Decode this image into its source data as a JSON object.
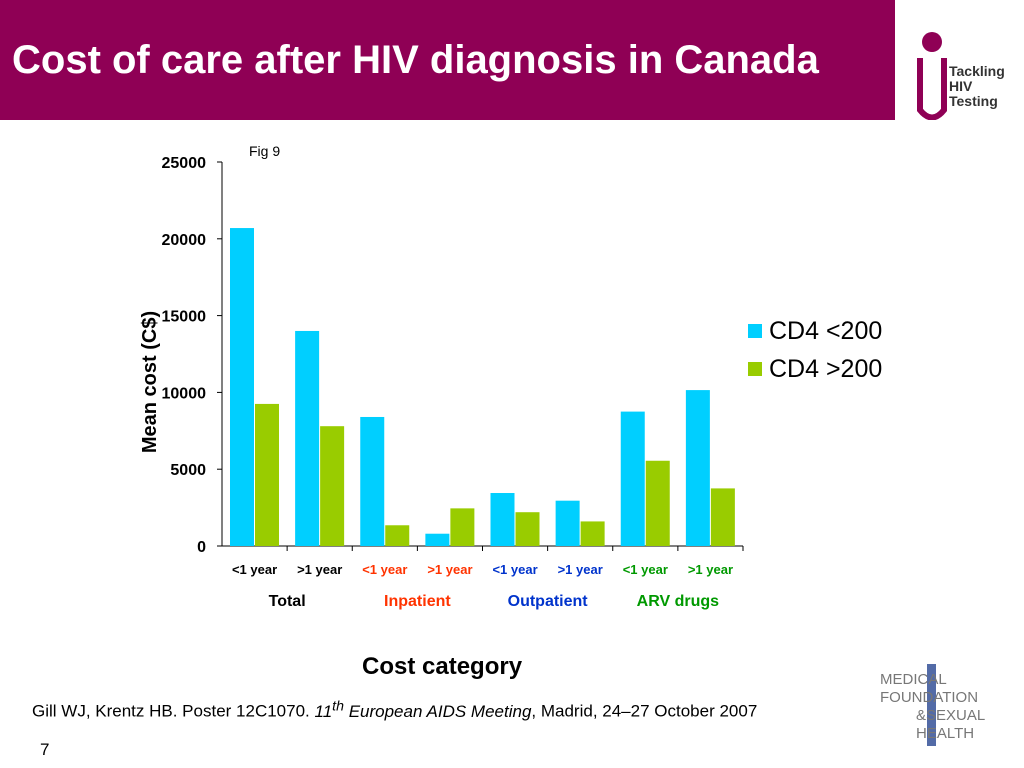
{
  "header": {
    "title": "Cost of care after HIV diagnosis in Canada",
    "logo_text": [
      "Tackling",
      "HIV",
      "Testing"
    ]
  },
  "colors": {
    "title_bar": "#8f0055",
    "series_cd4_low": "#00cfff",
    "series_cd4_high": "#99cc00",
    "group_total": "#000000",
    "group_inpatient": "#ff3300",
    "group_outpatient": "#0033cc",
    "group_arv": "#009900"
  },
  "chart_data": {
    "type": "bar",
    "fig_label": "Fig 9",
    "ylabel": "Mean cost (C$)",
    "xlabel": "Cost category",
    "ylim": [
      0,
      25000
    ],
    "yticks": [
      "0",
      "5000",
      "10000",
      "15000",
      "20000",
      "25000"
    ],
    "categories": [
      "<1 year",
      ">1 year",
      "<1 year",
      ">1 year",
      "<1 year",
      ">1 year",
      "<1 year",
      ">1 year"
    ],
    "groups": [
      {
        "label": "Total",
        "color": "#000000"
      },
      {
        "label": "Inpatient",
        "color": "#ff3300"
      },
      {
        "label": "Outpatient",
        "color": "#0033cc"
      },
      {
        "label": "ARV drugs",
        "color": "#009900"
      }
    ],
    "series": [
      {
        "name": "CD4 <200",
        "color": "#00cfff",
        "values": [
          20700,
          14000,
          8400,
          800,
          3450,
          2950,
          8750,
          10150
        ]
      },
      {
        "name": "CD4 >200",
        "color": "#99cc00",
        "values": [
          9250,
          7800,
          1350,
          2450,
          2200,
          1600,
          5550,
          3750
        ]
      }
    ],
    "legend": "right"
  },
  "citation": {
    "authors": "Gill WJ, Krentz HB. Poster 12C1070. ",
    "ordinal": "11",
    "ordinal_sup": "th",
    "meeting": " European AIDS Meeting",
    "rest": ", Madrid, 24–27 October 2007"
  },
  "page_number": "7",
  "sponsor": {
    "lines": [
      "MEDICAL",
      "FOUNDATION",
      "&SEXUAL",
      "HEALTH"
    ]
  }
}
